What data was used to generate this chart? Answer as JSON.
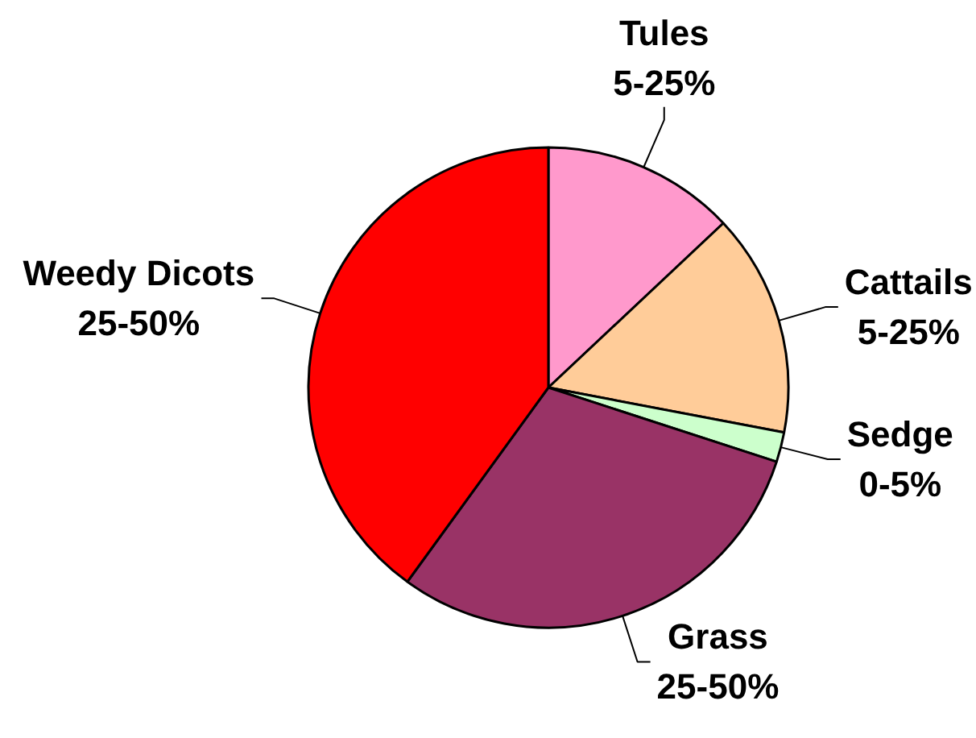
{
  "chart_data": {
    "type": "pie",
    "categories": [
      "Tules\n5-25%",
      "Cattails\n5-25%",
      "Sedge\n0-5%",
      "Grass\n25-50%",
      "Weedy Dicots\n25-50%"
    ],
    "values": [
      13,
      15,
      2,
      30,
      40
    ],
    "colors": [
      "#ff99cc",
      "#ffcc99",
      "#ccffcc",
      "#993366",
      "#ff0000"
    ]
  }
}
